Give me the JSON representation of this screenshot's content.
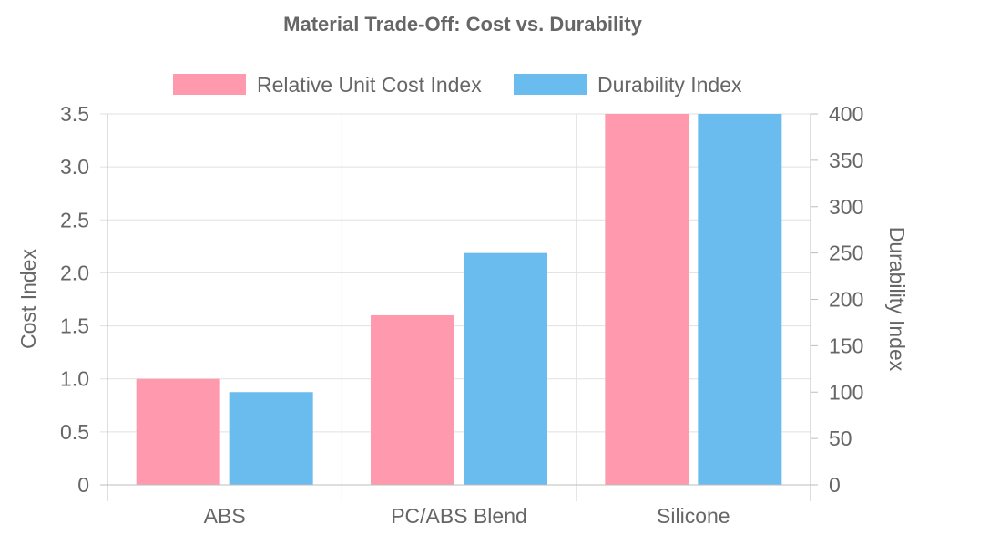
{
  "chart_data": {
    "type": "bar",
    "title": "Material Trade-Off: Cost vs. Durability",
    "categories": [
      "ABS",
      "PC/ABS Blend",
      "Silicone"
    ],
    "series": [
      {
        "name": "Relative Unit Cost Index",
        "axis": "left",
        "color": "#ff9aae",
        "values": [
          1.0,
          1.6,
          3.5
        ]
      },
      {
        "name": "Durability Index",
        "axis": "right",
        "color": "#6bbcee",
        "values": [
          100,
          250,
          400
        ]
      }
    ],
    "y_left": {
      "label": "Cost Index",
      "ylim": [
        0,
        3.5
      ],
      "ticks": [
        "0",
        "0.5",
        "1.0",
        "1.5",
        "2.0",
        "2.5",
        "3.0",
        "3.5"
      ],
      "tick_values": [
        0,
        0.5,
        1.0,
        1.5,
        2.0,
        2.5,
        3.0,
        3.5
      ]
    },
    "y_right": {
      "label": "Durability Index",
      "ylim": [
        0,
        400
      ],
      "ticks": [
        "0",
        "50",
        "100",
        "150",
        "200",
        "250",
        "300",
        "350",
        "400"
      ],
      "tick_values": [
        0,
        50,
        100,
        150,
        200,
        250,
        300,
        350,
        400
      ]
    },
    "legend": "top-center",
    "grid": true
  }
}
